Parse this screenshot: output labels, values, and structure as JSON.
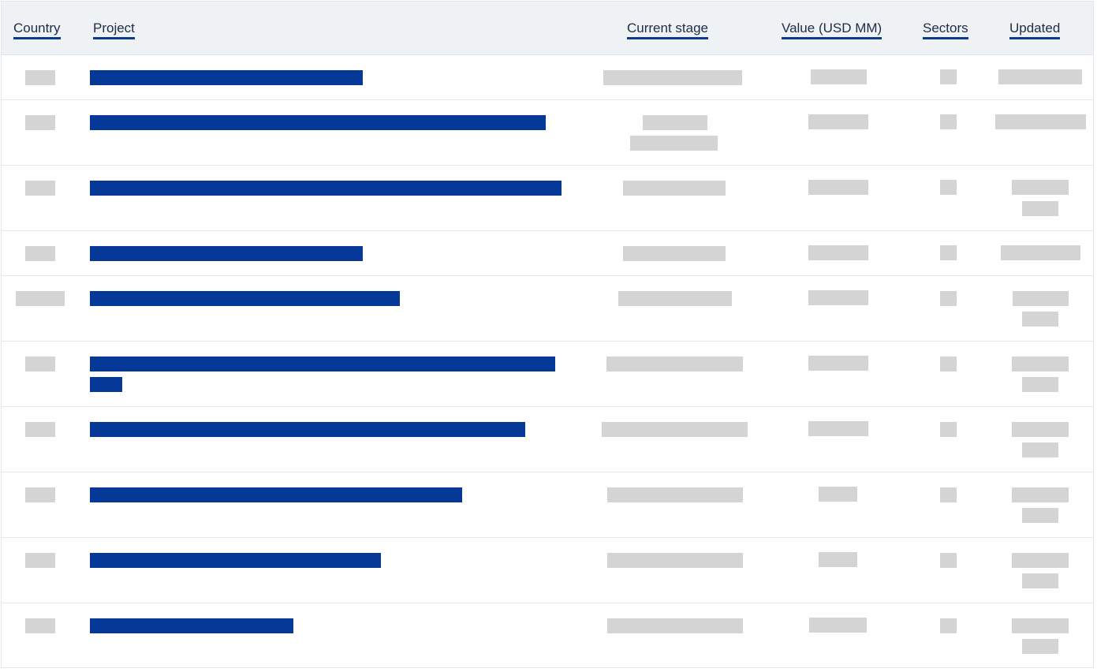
{
  "table": {
    "columns": [
      {
        "key": "country",
        "label": "Country"
      },
      {
        "key": "project",
        "label": "Project"
      },
      {
        "key": "current_stage",
        "label": "Current stage"
      },
      {
        "key": "value",
        "label": "Value (USD MM)"
      },
      {
        "key": "sectors",
        "label": "Sectors"
      },
      {
        "key": "updated",
        "label": "Updated"
      }
    ],
    "rows": [
      {
        "project_lines": 1
      },
      {
        "project_lines": 1
      },
      {
        "project_lines": 1
      },
      {
        "project_lines": 1
      },
      {
        "project_lines": 1
      },
      {
        "project_lines": 2
      },
      {
        "project_lines": 1
      },
      {
        "project_lines": 1
      },
      {
        "project_lines": 1
      },
      {
        "project_lines": 1
      }
    ]
  },
  "colors": {
    "header_bg": "#eff2f5",
    "link_accent": "#053897",
    "skeleton": "#d4d4d4",
    "border": "#e3e7ec"
  }
}
